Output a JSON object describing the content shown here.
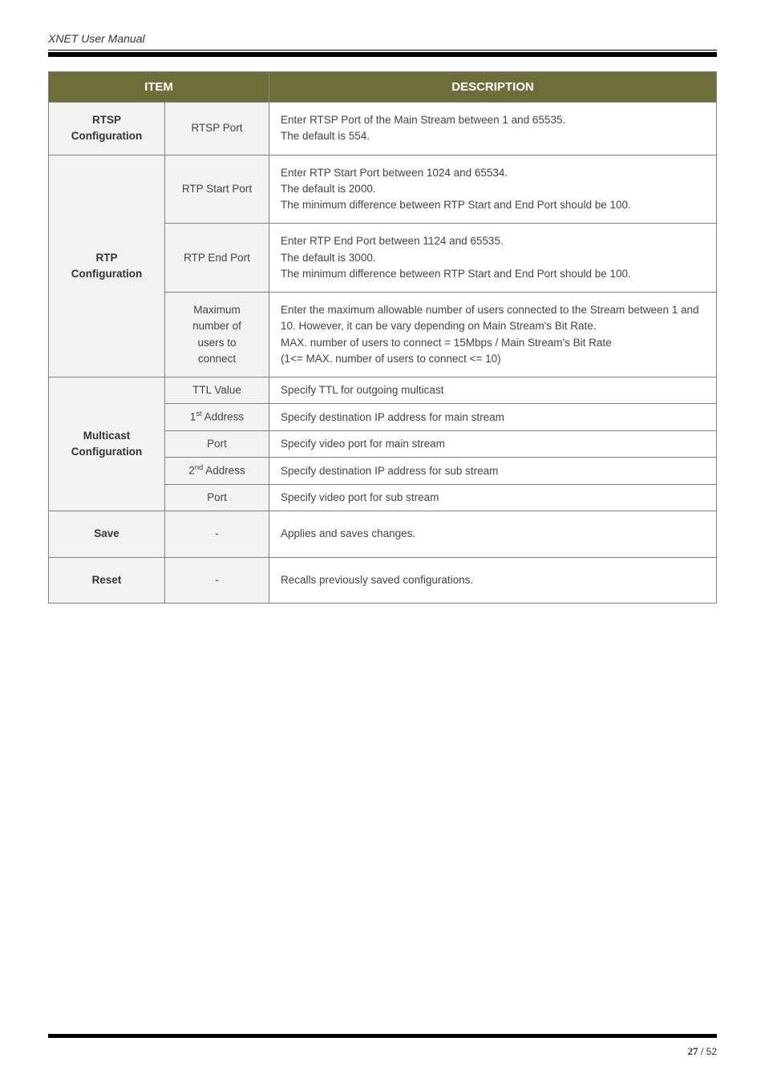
{
  "header": {
    "title": "XNET User Manual"
  },
  "table": {
    "head": {
      "item": "ITEM",
      "description": "DESCRIPTION"
    },
    "rows": [
      {
        "category": "RTSP\nConfiguration",
        "param": "RTSP Port",
        "desc": "Enter RTSP Port of the Main Stream between 1 and 65535.\nThe default is 554."
      },
      {
        "category": "RTP\nConfiguration",
        "rowspan": 3,
        "param": "RTP Start Port",
        "desc": "Enter RTP Start Port between 1024 and 65534.\nThe default is 2000.\nThe minimum difference between RTP Start and End Port should be 100."
      },
      {
        "param": "RTP End Port",
        "desc": "Enter RTP End Port between 1124 and 65535.\nThe default is 3000.\nThe minimum difference between RTP Start and End Port should be 100."
      },
      {
        "param": "Maximum\nnumber of\nusers to\nconnect",
        "desc": "Enter the maximum allowable number of users connected to the Stream between 1 and 10. However, it can be vary depending on Main Stream's Bit Rate.\nMAX. number of users to connect = 15Mbps / Main Stream's Bit Rate\n(1<= MAX. number of users to connect <= 10)"
      },
      {
        "category": "Multicast\nConfiguration",
        "rowspan": 5,
        "param": "TTL Value",
        "desc": "Specify TTL for outgoing multicast"
      },
      {
        "param_html": "1<sup>st</sup> Address",
        "desc": "Specify destination IP address for main stream"
      },
      {
        "param": "Port",
        "desc": "Specify video port for main stream"
      },
      {
        "param_html": "2<sup>nd</sup> Address",
        "desc": "Specify destination IP address for sub stream"
      },
      {
        "param": "Port",
        "desc": "Specify video port for sub stream"
      },
      {
        "category": "Save",
        "param": "-",
        "param_dash": true,
        "desc": "Applies and saves changes."
      },
      {
        "category": "Reset",
        "param": "-",
        "param_dash": true,
        "desc": "Recalls previously saved configurations."
      }
    ]
  },
  "footer": {
    "page_current": "27",
    "page_sep": " / ",
    "page_total": "52"
  },
  "colors": {
    "header_bg": "#6e6e3a",
    "header_text": "#ffffff",
    "category_bg": "#f2f2f2",
    "border": "#808080",
    "text": "#444444"
  }
}
